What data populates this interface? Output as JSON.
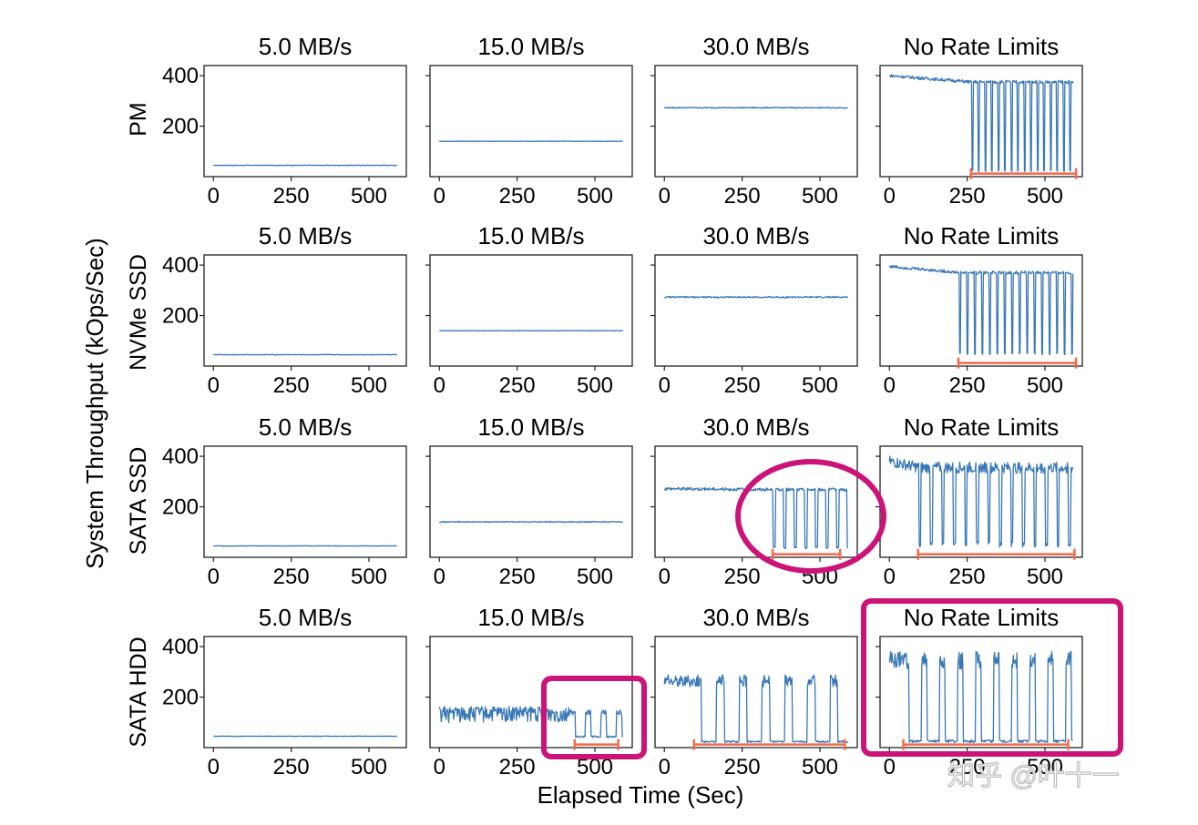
{
  "chart_data": {
    "type": "line",
    "ylabel": "System Throughput (kOps/Sec)",
    "xlabel": "Elapsed Time (Sec)",
    "column_titles": [
      "5.0 MB/s",
      "15.0 MB/s",
      "30.0 MB/s",
      "No Rate Limits"
    ],
    "row_labels": [
      "PM",
      "NVMe SSD",
      "SATA SSD",
      "SATA HDD"
    ],
    "x_ticks": [
      "0",
      "250",
      "500"
    ],
    "y_ticks": [
      "200",
      "400"
    ],
    "xlim": [
      -30,
      620
    ],
    "ylim": [
      0,
      440
    ],
    "line_color": "#3a78b6",
    "range_bar_color": "#ef6a4d",
    "highlight_color": "#cc1478",
    "watermark": "知乎 @叶十一",
    "panels": [
      {
        "row": 0,
        "col": 0,
        "pattern": "flat",
        "level": 45,
        "noise": 1
      },
      {
        "row": 0,
        "col": 1,
        "pattern": "flat",
        "level": 140,
        "noise": 1
      },
      {
        "row": 0,
        "col": 2,
        "pattern": "flat",
        "level": 273,
        "noise": 2
      },
      {
        "row": 0,
        "col": 3,
        "pattern": "stall",
        "level": 375,
        "start_level": 400,
        "low": 20,
        "stall_start": 265,
        "period": 21,
        "noise": 6,
        "range": [
          262,
          600
        ]
      },
      {
        "row": 1,
        "col": 0,
        "pattern": "flat",
        "level": 45,
        "noise": 1
      },
      {
        "row": 1,
        "col": 1,
        "pattern": "flat",
        "level": 140,
        "noise": 1
      },
      {
        "row": 1,
        "col": 2,
        "pattern": "flat",
        "level": 273,
        "noise": 3
      },
      {
        "row": 1,
        "col": 3,
        "pattern": "stall",
        "level": 370,
        "start_level": 395,
        "low": 45,
        "stall_start": 225,
        "period": 24,
        "noise": 6,
        "range": [
          222,
          600
        ]
      },
      {
        "row": 2,
        "col": 0,
        "pattern": "flat",
        "level": 45,
        "noise": 1
      },
      {
        "row": 2,
        "col": 1,
        "pattern": "flat",
        "level": 140,
        "noise": 2
      },
      {
        "row": 2,
        "col": 2,
        "pattern": "stall",
        "level": 268,
        "start_level": 272,
        "low": 35,
        "stall_start": 350,
        "period": 34,
        "noise": 6,
        "range": [
          348,
          565
        ]
      },
      {
        "row": 2,
        "col": 3,
        "pattern": "stall",
        "level": 355,
        "start_level": 380,
        "low": 40,
        "stall_start": 95,
        "period": 37,
        "noise": 22,
        "range": [
          92,
          595
        ]
      },
      {
        "row": 3,
        "col": 0,
        "pattern": "flat",
        "level": 45,
        "noise": 1
      },
      {
        "row": 3,
        "col": 1,
        "pattern": "hdd",
        "level": 140,
        "low": 40,
        "stall_start": 420,
        "noise": 32,
        "range": [
          435,
          575
        ]
      },
      {
        "row": 3,
        "col": 2,
        "pattern": "bursty",
        "level": 265,
        "low": 20,
        "stall_start": 95,
        "period": 73,
        "duty": 0.34,
        "noise": 24,
        "range": [
          95,
          580
        ]
      },
      {
        "row": 3,
        "col": 3,
        "pattern": "bursty",
        "level": 345,
        "low": 20,
        "stall_start": 45,
        "period": 58,
        "duty": 0.3,
        "noise": 36,
        "range": [
          45,
          575
        ]
      }
    ]
  }
}
